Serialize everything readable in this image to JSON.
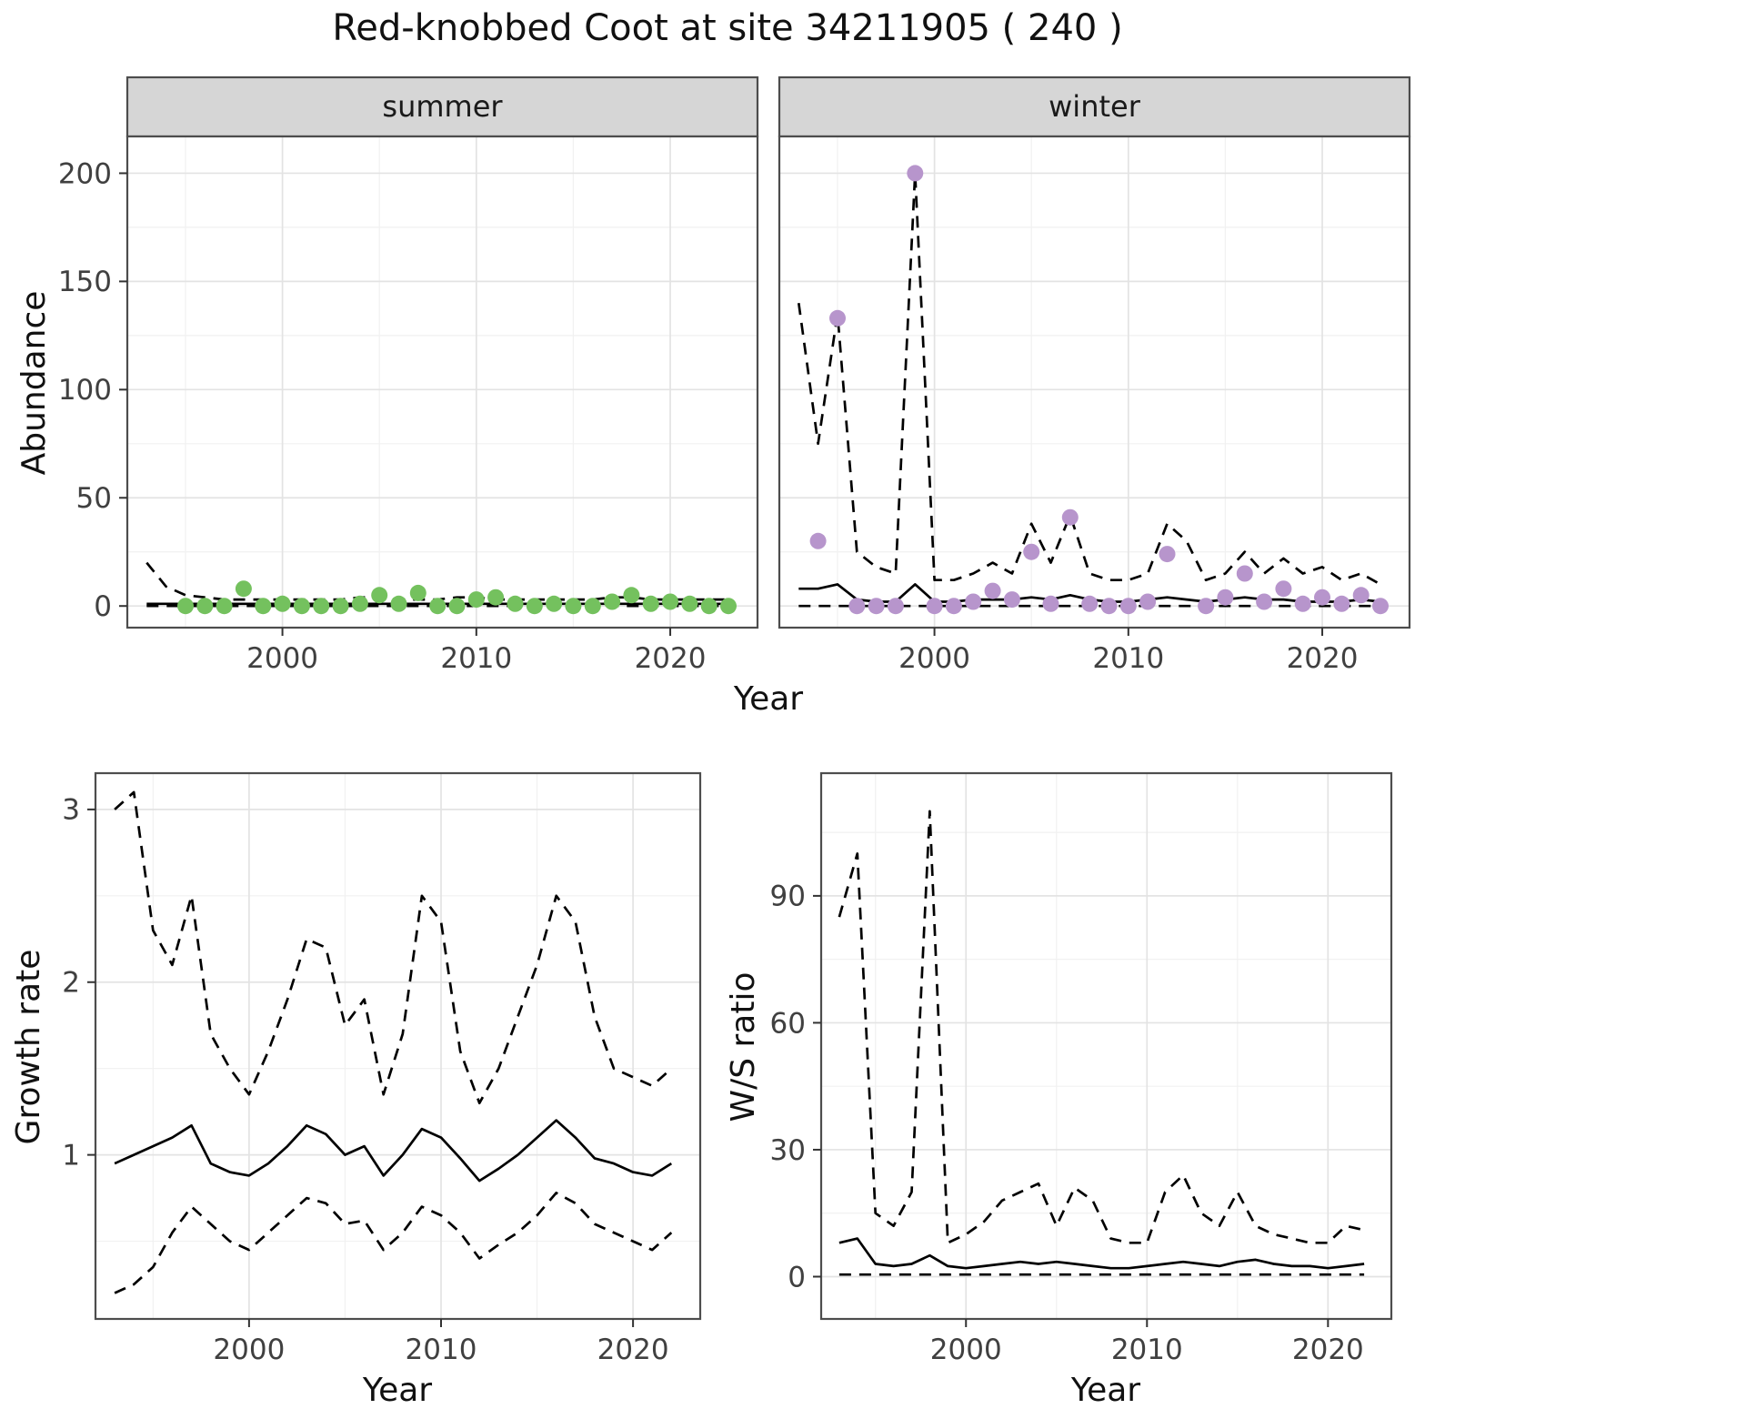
{
  "title": "Red-knobbed Coot at site 34211905 ( 240 )",
  "colors": {
    "summer_point": "#74c15e",
    "winter_point": "#b795cc",
    "line": "#000000",
    "strip_fill": "#d6d6d6",
    "panel_border": "#4d4d4d",
    "grid_major": "#e3e3e3",
    "grid_minor": "#f1f1f1"
  },
  "chart_data": [
    {
      "type": "line",
      "title": "Abundance by season",
      "xlabel": "Year",
      "ylabel": "Abundance",
      "legend_position": "none",
      "grid": "on",
      "xticks": [
        2000,
        2010,
        2020
      ],
      "xminor": [
        1995,
        2005,
        2015
      ],
      "yticks": [
        0,
        50,
        100,
        150,
        200
      ],
      "yminor": [
        25,
        75,
        125,
        175
      ],
      "xlim": [
        1992,
        2024.5
      ],
      "ylim": [
        -10,
        217
      ],
      "line_years": [
        1993,
        1994,
        1995,
        1996,
        1997,
        1998,
        1999,
        2000,
        2001,
        2002,
        2003,
        2004,
        2005,
        2006,
        2007,
        2008,
        2009,
        2010,
        2011,
        2012,
        2013,
        2014,
        2015,
        2016,
        2017,
        2018,
        2019,
        2020,
        2021,
        2022,
        2023
      ],
      "facets": [
        {
          "label": "summer",
          "point_color": "#74c15e",
          "fit": [
            1,
            1,
            1,
            1,
            1,
            1,
            1,
            1,
            1,
            1,
            1,
            1,
            1,
            1,
            1,
            1,
            1,
            1,
            1,
            1,
            1,
            1,
            1,
            1,
            1,
            1,
            1,
            1,
            1,
            1,
            1
          ],
          "upper": [
            20,
            9,
            5,
            4,
            3,
            3,
            3,
            3,
            3,
            3,
            3,
            4,
            4,
            3,
            3,
            3,
            4,
            4,
            3,
            3,
            3,
            3,
            3,
            3,
            4,
            4,
            3,
            3,
            3,
            3,
            3
          ],
          "lower": [
            0,
            0,
            0,
            0,
            0,
            0,
            0,
            0,
            0,
            0,
            0,
            0,
            0,
            0,
            0,
            0,
            0,
            0,
            0,
            0,
            0,
            0,
            0,
            0,
            0,
            0,
            0,
            0,
            0,
            0,
            0
          ],
          "point_years": [
            1995,
            1996,
            1997,
            1998,
            1999,
            2000,
            2001,
            2002,
            2003,
            2004,
            2005,
            2006,
            2007,
            2008,
            2009,
            2010,
            2011,
            2012,
            2013,
            2014,
            2015,
            2016,
            2017,
            2018,
            2019,
            2020,
            2021,
            2022,
            2023
          ],
          "point_values": [
            0,
            0,
            0,
            8,
            0,
            1,
            0,
            0,
            0,
            1,
            5,
            1,
            6,
            0,
            0,
            3,
            4,
            1,
            0,
            1,
            0,
            0,
            2,
            5,
            1,
            2,
            1,
            0,
            0
          ]
        },
        {
          "label": "winter",
          "point_color": "#b795cc",
          "fit": [
            8,
            8,
            10,
            3,
            2,
            2,
            10,
            2,
            2,
            3,
            3,
            3,
            4,
            3,
            5,
            3,
            2,
            2,
            3,
            4,
            3,
            2,
            3,
            4,
            3,
            3,
            2,
            2,
            2,
            3,
            2
          ],
          "upper": [
            140,
            75,
            135,
            25,
            18,
            15,
            200,
            12,
            12,
            15,
            20,
            15,
            38,
            20,
            42,
            15,
            12,
            12,
            15,
            38,
            30,
            12,
            15,
            25,
            15,
            22,
            15,
            18,
            12,
            15,
            10
          ],
          "lower": [
            0,
            0,
            0,
            0,
            0,
            0,
            0,
            0,
            0,
            0,
            0,
            0,
            0,
            0,
            0,
            0,
            0,
            0,
            0,
            0,
            0,
            0,
            0,
            0,
            0,
            0,
            0,
            0,
            0,
            0,
            0
          ],
          "point_years": [
            1994,
            1995,
            1996,
            1997,
            1998,
            1999,
            2000,
            2001,
            2002,
            2003,
            2004,
            2005,
            2006,
            2007,
            2008,
            2009,
            2010,
            2011,
            2012,
            2014,
            2015,
            2016,
            2017,
            2018,
            2019,
            2020,
            2021,
            2022,
            2023
          ],
          "point_values": [
            30,
            133,
            0,
            0,
            0,
            200,
            0,
            0,
            2,
            7,
            3,
            25,
            1,
            41,
            1,
            0,
            0,
            2,
            24,
            0,
            4,
            15,
            2,
            8,
            1,
            4,
            1,
            5,
            0
          ]
        }
      ]
    },
    {
      "type": "line",
      "title": "Growth rate",
      "xlabel": "Year",
      "ylabel": "Growth rate",
      "legend_position": "none",
      "grid": "on",
      "xticks": [
        2000,
        2010,
        2020
      ],
      "xminor": [
        1995,
        2005,
        2015
      ],
      "yticks": [
        1,
        2,
        3
      ],
      "yminor": [
        0.5,
        1.5,
        2.5
      ],
      "xlim": [
        1992,
        2023.5
      ],
      "ylim": [
        0.05,
        3.21
      ],
      "years": [
        1993,
        1994,
        1995,
        1996,
        1997,
        1998,
        1999,
        2000,
        2001,
        2002,
        2003,
        2004,
        2005,
        2006,
        2007,
        2008,
        2009,
        2010,
        2011,
        2012,
        2013,
        2014,
        2015,
        2016,
        2017,
        2018,
        2019,
        2020,
        2021,
        2022
      ],
      "fit": [
        0.95,
        1.0,
        1.05,
        1.1,
        1.17,
        0.95,
        0.9,
        0.88,
        0.95,
        1.05,
        1.17,
        1.12,
        1.0,
        1.05,
        0.88,
        1.0,
        1.15,
        1.1,
        0.98,
        0.85,
        0.92,
        1.0,
        1.1,
        1.2,
        1.1,
        0.98,
        0.95,
        0.9,
        0.88,
        0.95
      ],
      "upper": [
        3.0,
        3.1,
        2.3,
        2.1,
        2.5,
        1.7,
        1.5,
        1.35,
        1.6,
        1.9,
        2.25,
        2.2,
        1.75,
        1.9,
        1.35,
        1.7,
        2.5,
        2.35,
        1.6,
        1.3,
        1.5,
        1.8,
        2.1,
        2.5,
        2.35,
        1.8,
        1.5,
        1.45,
        1.4,
        1.5
      ],
      "lower": [
        0.2,
        0.25,
        0.35,
        0.55,
        0.7,
        0.6,
        0.5,
        0.45,
        0.55,
        0.65,
        0.75,
        0.72,
        0.6,
        0.62,
        0.45,
        0.55,
        0.7,
        0.65,
        0.55,
        0.4,
        0.48,
        0.55,
        0.65,
        0.78,
        0.72,
        0.6,
        0.55,
        0.5,
        0.45,
        0.55
      ]
    },
    {
      "type": "line",
      "title": "Winter/Summer ratio",
      "xlabel": "Year",
      "ylabel": "W/S ratio",
      "legend_position": "none",
      "grid": "on",
      "xticks": [
        2000,
        2010,
        2020
      ],
      "xminor": [
        1995,
        2005,
        2015
      ],
      "yticks": [
        0,
        30,
        60,
        90
      ],
      "yminor": [
        15,
        45,
        75,
        105
      ],
      "xlim": [
        1992,
        2023.5
      ],
      "ylim": [
        -10,
        119
      ],
      "years": [
        1993,
        1994,
        1995,
        1996,
        1997,
        1998,
        1999,
        2000,
        2001,
        2002,
        2003,
        2004,
        2005,
        2006,
        2007,
        2008,
        2009,
        2010,
        2011,
        2012,
        2013,
        2014,
        2015,
        2016,
        2017,
        2018,
        2019,
        2020,
        2021,
        2022
      ],
      "fit": [
        8,
        9,
        3,
        2.5,
        3,
        5,
        2.5,
        2,
        2.5,
        3,
        3.5,
        3,
        3.5,
        3,
        2.5,
        2,
        2,
        2.5,
        3,
        3.5,
        3,
        2.5,
        3.5,
        4,
        3,
        2.5,
        2.5,
        2,
        2.5,
        3
      ],
      "upper": [
        85,
        100,
        15,
        12,
        20,
        110,
        8,
        10,
        13,
        18,
        20,
        22,
        12,
        21,
        18,
        9,
        8,
        8,
        20,
        24,
        15,
        12,
        20,
        12,
        10,
        9,
        8,
        8,
        12,
        11
      ],
      "lower": [
        0.5,
        0.5,
        0.5,
        0.5,
        0.5,
        0.5,
        0.5,
        0.5,
        0.5,
        0.5,
        0.5,
        0.5,
        0.5,
        0.5,
        0.5,
        0.5,
        0.5,
        0.5,
        0.5,
        0.5,
        0.5,
        0.5,
        0.5,
        0.5,
        0.5,
        0.5,
        0.5,
        0.5,
        0.5,
        0.5
      ]
    }
  ]
}
